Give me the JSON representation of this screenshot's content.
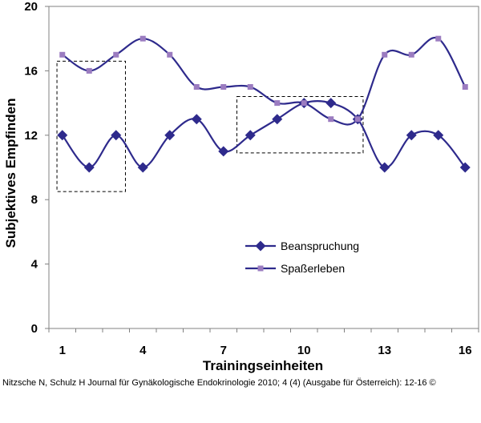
{
  "chart_data": {
    "type": "line",
    "title": "",
    "xlabel": "Trainingseinheiten",
    "ylabel": "Subjektives Empfinden",
    "x": [
      1,
      2,
      3,
      4,
      5,
      6,
      7,
      8,
      9,
      10,
      11,
      12,
      13,
      14,
      15,
      16
    ],
    "xticks": [
      1,
      4,
      7,
      10,
      13,
      16
    ],
    "yticks": [
      0,
      4,
      8,
      12,
      16,
      20
    ],
    "xlim": [
      0.5,
      16.5
    ],
    "ylim": [
      0,
      20
    ],
    "grid": false,
    "legend_position": "lower-center",
    "series": [
      {
        "name": "Beanspruchung",
        "color": "#2e2a8c",
        "marker": "diamond",
        "values": [
          12,
          10,
          12,
          10,
          12,
          13,
          11,
          12,
          13,
          14,
          14,
          13,
          10,
          12,
          12,
          10
        ]
      },
      {
        "name": "Spaßerleben",
        "color": "#9b7cc0",
        "line_color": "#2e2a8c",
        "marker": "square",
        "values": [
          17,
          16,
          17,
          18,
          17,
          15,
          15,
          15,
          14,
          14,
          13,
          13,
          17,
          17,
          18,
          15
        ]
      }
    ],
    "annotations": [
      {
        "type": "dashed-box",
        "x_range": [
          0.8,
          3.35
        ],
        "y_range": [
          8.5,
          16.6
        ]
      },
      {
        "type": "dashed-box",
        "x_range": [
          7.5,
          12.2
        ],
        "y_range": [
          10.9,
          14.4
        ]
      }
    ]
  },
  "citation": "Nitzsche N, Schulz H Journal für Gynäkologische Endokrinologie 2010; 4 (4) (Ausgabe für Österreich): 12-16 ©"
}
